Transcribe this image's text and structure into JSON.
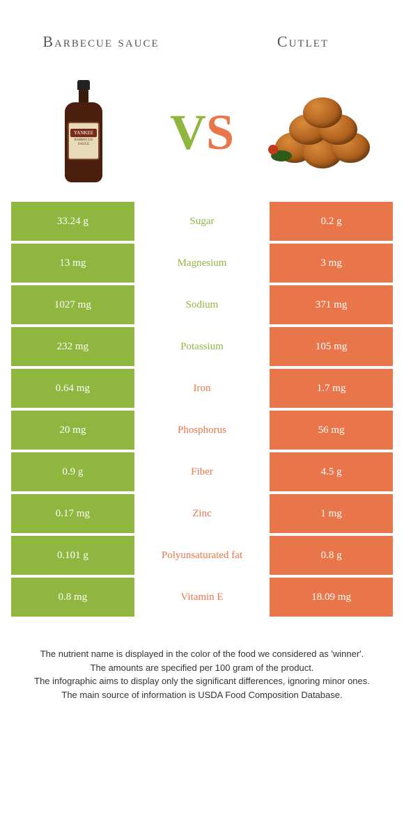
{
  "header": {
    "left_title": "Barbecue sauce",
    "right_title": "Cutlet",
    "vs_v": "V",
    "vs_s": "S"
  },
  "colors": {
    "left_bg": "#8fb63f",
    "right_bg": "#e8764a",
    "left_text": "#8fb63f",
    "right_text": "#e8764a"
  },
  "rows": [
    {
      "left": "33.24 g",
      "label": "Sugar",
      "right": "0.2 g",
      "winner": "left"
    },
    {
      "left": "13 mg",
      "label": "Magnesium",
      "right": "3 mg",
      "winner": "left"
    },
    {
      "left": "1027 mg",
      "label": "Sodium",
      "right": "371 mg",
      "winner": "left"
    },
    {
      "left": "232 mg",
      "label": "Potassium",
      "right": "105 mg",
      "winner": "left"
    },
    {
      "left": "0.64 mg",
      "label": "Iron",
      "right": "1.7 mg",
      "winner": "right"
    },
    {
      "left": "20 mg",
      "label": "Phosphorus",
      "right": "56 mg",
      "winner": "right"
    },
    {
      "left": "0.9 g",
      "label": "Fiber",
      "right": "4.5 g",
      "winner": "right"
    },
    {
      "left": "0.17 mg",
      "label": "Zinc",
      "right": "1 mg",
      "winner": "right"
    },
    {
      "left": "0.101 g",
      "label": "Polyunsaturated fat",
      "right": "0.8 g",
      "winner": "right"
    },
    {
      "left": "0.8 mg",
      "label": "Vitamin E",
      "right": "18.09 mg",
      "winner": "right"
    }
  ],
  "footer": {
    "line1": "The nutrient name is displayed in the color of the food we considered as 'winner'.",
    "line2": "The amounts are specified per 100 gram of the product.",
    "line3": "The infographic aims to display only the significant differences, ignoring minor ones.",
    "line4": "The main source of information is USDA Food Composition Database."
  }
}
